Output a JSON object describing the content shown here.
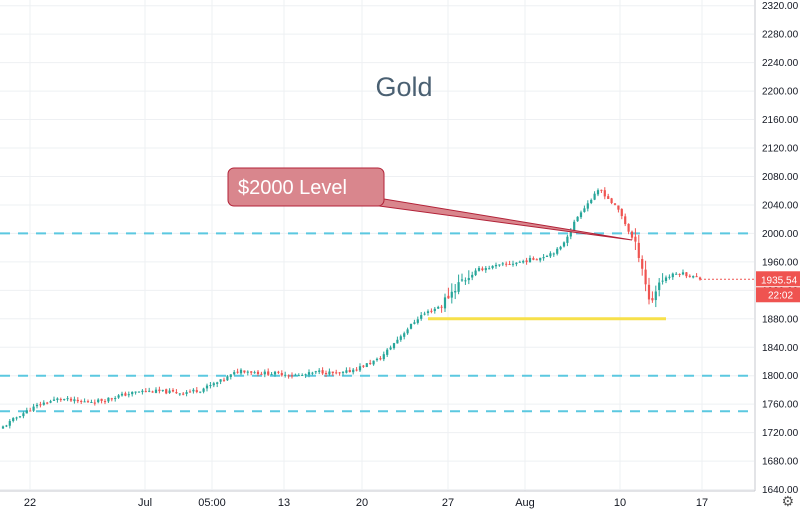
{
  "chart_data": {
    "type": "candlestick",
    "title": "Gold",
    "annotation_label": "$2000 Level",
    "last_price": "1935.54",
    "countdown": "22:02",
    "x_ticks": [
      "22",
      "Jul",
      "05:00",
      "13",
      "20",
      "27",
      "Aug",
      "10",
      "17"
    ],
    "y_ticks": [
      "1640.00",
      "1680.00",
      "1720.00",
      "1760.00",
      "1800.00",
      "1840.00",
      "1880.00",
      "1920.00",
      "1960.00",
      "2000.00",
      "2040.00",
      "2080.00",
      "2120.00",
      "2160.00",
      "2200.00",
      "2240.00",
      "2280.00",
      "2320.00"
    ],
    "ylim": [
      1638,
      2328
    ],
    "horizontal_levels": [
      2000,
      1800,
      1750
    ],
    "support_level": 1880,
    "colors": {
      "up": "#26a69a",
      "down": "#ef5350",
      "level": "#5bc8e0",
      "support": "#f7e04a",
      "callout": "#d9868d"
    },
    "close_path": [
      [
        0,
        1725
      ],
      [
        20,
        1745
      ],
      [
        40,
        1760
      ],
      [
        60,
        1768
      ],
      [
        80,
        1763
      ],
      [
        100,
        1765
      ],
      [
        120,
        1772
      ],
      [
        140,
        1778
      ],
      [
        160,
        1778
      ],
      [
        180,
        1776
      ],
      [
        200,
        1780
      ],
      [
        220,
        1792
      ],
      [
        240,
        1808
      ],
      [
        260,
        1804
      ],
      [
        280,
        1803
      ],
      [
        300,
        1800
      ],
      [
        320,
        1806
      ],
      [
        340,
        1802
      ],
      [
        360,
        1812
      ],
      [
        380,
        1824
      ],
      [
        400,
        1855
      ],
      [
        420,
        1884
      ],
      [
        440,
        1898
      ],
      [
        460,
        1932
      ],
      [
        480,
        1950
      ],
      [
        500,
        1955
      ],
      [
        520,
        1960
      ],
      [
        540,
        1966
      ],
      [
        560,
        1978
      ],
      [
        580,
        2030
      ],
      [
        600,
        2062
      ],
      [
        620,
        2030
      ],
      [
        640,
        1968
      ],
      [
        650,
        1900
      ],
      [
        660,
        1935
      ],
      [
        680,
        1945
      ],
      [
        700,
        1936
      ]
    ]
  },
  "ui": {
    "settings_icon": "gear-icon"
  }
}
